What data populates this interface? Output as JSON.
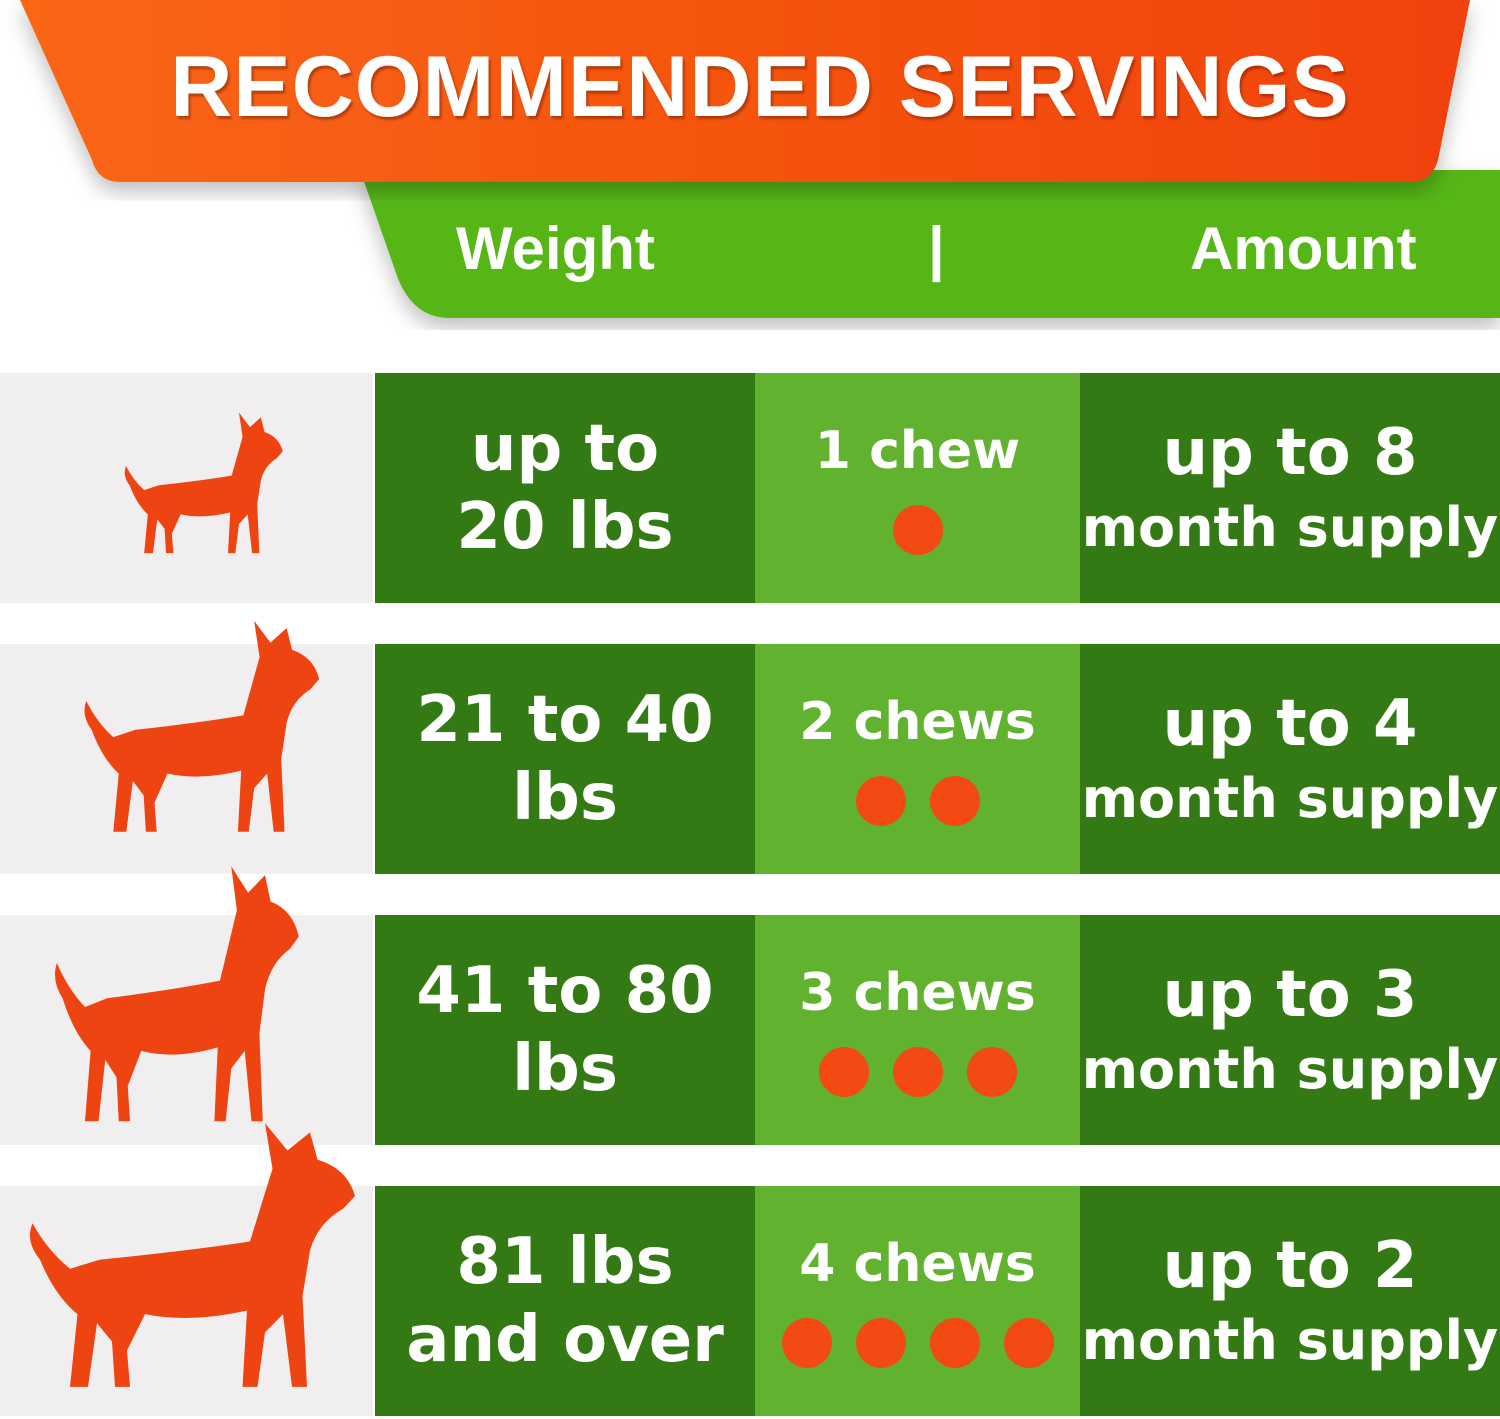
{
  "title": "RECOMMENDED SERVINGS",
  "header": {
    "weight": "Weight",
    "divider": "|",
    "amount": "Amount"
  },
  "colors": {
    "orange": "#f05a14",
    "header_green": "#55b619",
    "dark_green": "#347a14",
    "light_green": "#60b22f",
    "dot": "#f24a12"
  },
  "rows": [
    {
      "icon": "small-dog-icon",
      "weight": [
        "up to",
        "20 lbs"
      ],
      "chews": "1 chew",
      "chew_count": 1,
      "amount": "up to 8",
      "supply": "month supply"
    },
    {
      "icon": "medium-dog-icon",
      "weight": [
        "21 to 40",
        "lbs"
      ],
      "chews": "2 chews",
      "chew_count": 2,
      "amount": "up to 4",
      "supply": "month supply"
    },
    {
      "icon": "large-dog-icon",
      "weight": [
        "41 to 80",
        "lbs"
      ],
      "chews": "3 chews",
      "chew_count": 3,
      "amount": "up to 3",
      "supply": "month supply"
    },
    {
      "icon": "xlarge-dog-icon",
      "weight": [
        "81 lbs",
        "and over"
      ],
      "chews": "4 chews",
      "chew_count": 4,
      "amount": "up to 2",
      "supply": "month supply"
    }
  ]
}
